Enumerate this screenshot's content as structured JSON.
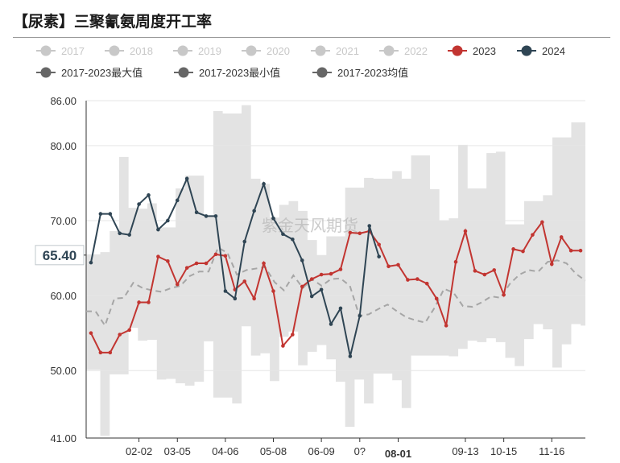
{
  "title": "【尿素】三聚氰氨周度开工率",
  "chart_data": {
    "type": "line",
    "title": "【尿素】三聚氰氨周度开工率",
    "legend": [
      {
        "name": "2017",
        "color": "#c8c8c8",
        "active": false
      },
      {
        "name": "2018",
        "color": "#c8c8c8",
        "active": false
      },
      {
        "name": "2019",
        "color": "#c8c8c8",
        "active": false
      },
      {
        "name": "2020",
        "color": "#c8c8c8",
        "active": false
      },
      {
        "name": "2021",
        "color": "#c8c8c8",
        "active": false
      },
      {
        "name": "2022",
        "color": "#c8c8c8",
        "active": false
      },
      {
        "name": "2023",
        "color": "#c23531",
        "active": true
      },
      {
        "name": "2024",
        "color": "#2f4554",
        "active": true
      },
      {
        "name": "2017-2023最大值",
        "color": "#666666",
        "active": true
      },
      {
        "name": "2017-2023最小值",
        "color": "#666666",
        "active": true
      },
      {
        "name": "2017-2023均值",
        "color": "#666666",
        "active": true
      }
    ],
    "legend_placement": "top",
    "xlabels": [
      "02-02",
      "03-05",
      "04-06",
      "05-08",
      "06-09",
      "0?",
      "08-01",
      "09-13",
      "10-15",
      "11-16"
    ],
    "xlabel_weeks": [
      5,
      9,
      14,
      19,
      24,
      28,
      32,
      39,
      43,
      48
    ],
    "x_highlight_label": "08-01",
    "yticks": [
      "41.00",
      "50.00",
      "60.00",
      "70.00",
      "80.00",
      "86.00"
    ],
    "ylim": [
      41,
      86
    ],
    "ytick_values": [
      41,
      50,
      60,
      70,
      80,
      86
    ],
    "pointer_value": "65.40",
    "pointer_numeric": 65.4,
    "watermark": "紫金天风期货",
    "grid": true,
    "weeks": 52,
    "series": [
      {
        "name": "2023",
        "color": "#c23531",
        "values": [
          55.0,
          52.4,
          52.4,
          54.8,
          55.4,
          59.1,
          59.1,
          65.2,
          64.6,
          61.5,
          63.7,
          64.3,
          64.3,
          65.5,
          65.3,
          60.8,
          61.9,
          59.6,
          64.3,
          60.6,
          53.3,
          54.8,
          61.2,
          62.2,
          62.8,
          62.9,
          63.5,
          68.4,
          68.3,
          68.6,
          66.8,
          63.9,
          64.1,
          62.1,
          62.2,
          61.6,
          59.6,
          56.0,
          64.5,
          68.6,
          63.3,
          62.8,
          63.4,
          60.1,
          66.2,
          65.9,
          68.1,
          69.8,
          64.2,
          67.8,
          66.0,
          66.0
        ]
      },
      {
        "name": "2024",
        "color": "#2f4554",
        "values": [
          64.4,
          70.9,
          70.9,
          68.3,
          68.1,
          72.2,
          73.4,
          68.8,
          70.0,
          72.7,
          75.6,
          71.1,
          70.6,
          70.6,
          60.6,
          59.6,
          67.2,
          71.3,
          74.9,
          70.3,
          68.2,
          67.5,
          64.7,
          59.9,
          60.8,
          56.2,
          58.3,
          51.9,
          57.3,
          69.3,
          65.2
        ]
      },
      {
        "name": "2017-2023最大值",
        "color": "#e3e3e3",
        "values": [
          65.5,
          65.5,
          65.8,
          68.6,
          78.5,
          71.7,
          71.6,
          72.3,
          69.1,
          69.1,
          74.3,
          76.0,
          76.0,
          70.6,
          84.6,
          84.3,
          84.3,
          85.4,
          75.6,
          74.9,
          70.4,
          72.1,
          72.6,
          71.3,
          67.4,
          65.4,
          67.9,
          67.9,
          74.4,
          74.4,
          75.7,
          75.6,
          75.6,
          76.6,
          75.6,
          78.7,
          78.7,
          74.2,
          70.0,
          70.3,
          80.1,
          74.3,
          74.3,
          79.0,
          79.2,
          69.5,
          69.5,
          72.6,
          72.6,
          73.4,
          81.1,
          81.1,
          83.1,
          83.1
        ]
      },
      {
        "name": "2017-2023最小值",
        "color": "#e3e3e3",
        "values": [
          50.1,
          50.1,
          41.3,
          49.5,
          49.5,
          55.7,
          54.0,
          54.1,
          48.8,
          48.9,
          48.3,
          48.0,
          48.5,
          53.9,
          46.4,
          46.4,
          45.6,
          55.9,
          52.0,
          52.3,
          48.6,
          54.5,
          55.2,
          50.7,
          52.5,
          53.4,
          51.5,
          48.5,
          42.5,
          48.8,
          45.6,
          49.6,
          49.6,
          48.7,
          45.0,
          52.0,
          52.0,
          52.0,
          52.0,
          51.9,
          52.9,
          54.0,
          53.8,
          54.3,
          53.8,
          51.7,
          50.6,
          54.2,
          56.2,
          55.5,
          50.4,
          53.5,
          56.2,
          56.0
        ]
      },
      {
        "name": "2017-2023均值",
        "color": "#a6a6a6",
        "values": [
          57.9,
          57.9,
          56.0,
          59.6,
          59.7,
          61.7,
          61.0,
          60.7,
          60.5,
          61.0,
          61.3,
          62.6,
          63.2,
          63.2,
          66.4,
          65.7,
          62.8,
          63.4,
          63.6,
          63.8,
          61.8,
          60.7,
          62.7,
          61.0,
          62.2,
          61.3,
          62.2,
          62.3,
          61.3,
          57.3,
          57.5,
          58.2,
          58.8,
          57.9,
          57.1,
          56.7,
          56.4,
          58.4,
          60.9,
          60.4,
          58.6,
          58.5,
          59.1,
          59.9,
          59.7,
          61.6,
          62.8,
          63.4,
          63.2,
          64.5,
          64.7,
          64.3,
          62.9,
          62.0
        ]
      }
    ]
  }
}
